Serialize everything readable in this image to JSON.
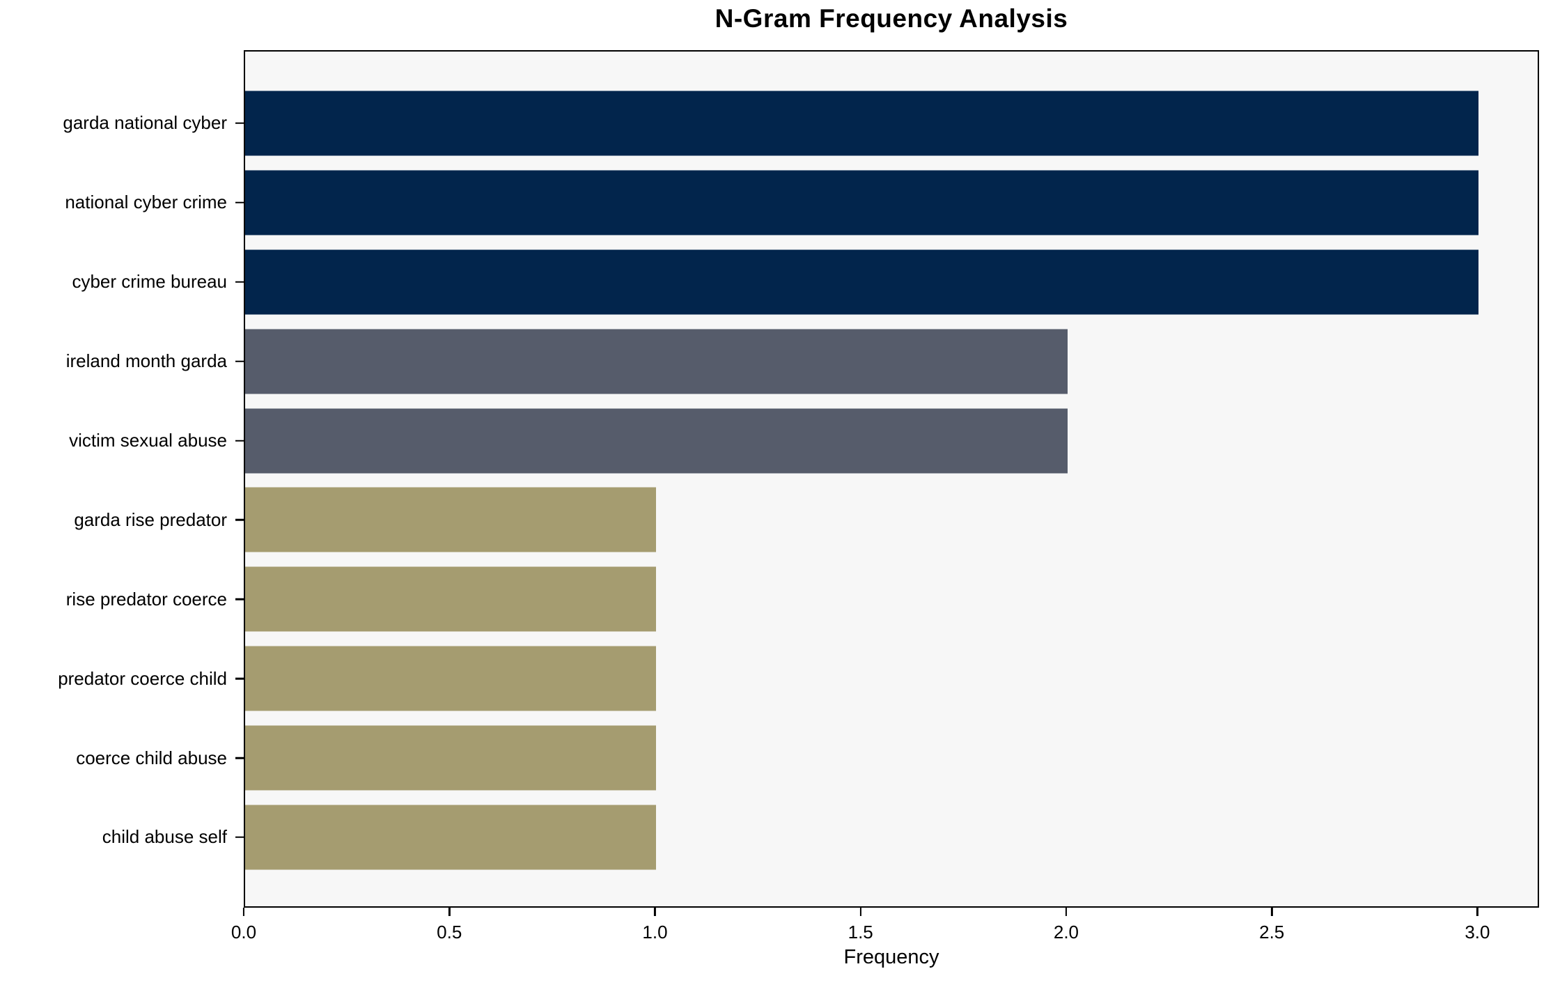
{
  "chart_data": {
    "type": "bar",
    "orientation": "horizontal",
    "title": "N-Gram Frequency Analysis",
    "xlabel": "Frequency",
    "ylabel": "",
    "categories": [
      "garda national cyber",
      "national cyber crime",
      "cyber crime bureau",
      "ireland month garda",
      "victim sexual abuse",
      "garda rise predator",
      "rise predator coerce",
      "predator coerce child",
      "coerce child abuse",
      "child abuse self"
    ],
    "values": [
      3,
      3,
      3,
      2,
      2,
      1,
      1,
      1,
      1,
      1
    ],
    "bar_colors": [
      "#02254c",
      "#02254c",
      "#02254c",
      "#565c6b",
      "#565c6b",
      "#a59c70",
      "#a59c70",
      "#a59c70",
      "#a59c70",
      "#a59c70"
    ],
    "xlim": [
      0,
      3.15
    ],
    "xticks": [
      0.0,
      0.5,
      1.0,
      1.5,
      2.0,
      2.5,
      3.0
    ],
    "xtick_labels": [
      "0.0",
      "0.5",
      "1.0",
      "1.5",
      "2.0",
      "2.5",
      "3.0"
    ],
    "grid": false,
    "legend_position": "none",
    "plot_background": "#f7f7f7",
    "figure_background": "#ffffff",
    "axis_color": "#000000"
  }
}
